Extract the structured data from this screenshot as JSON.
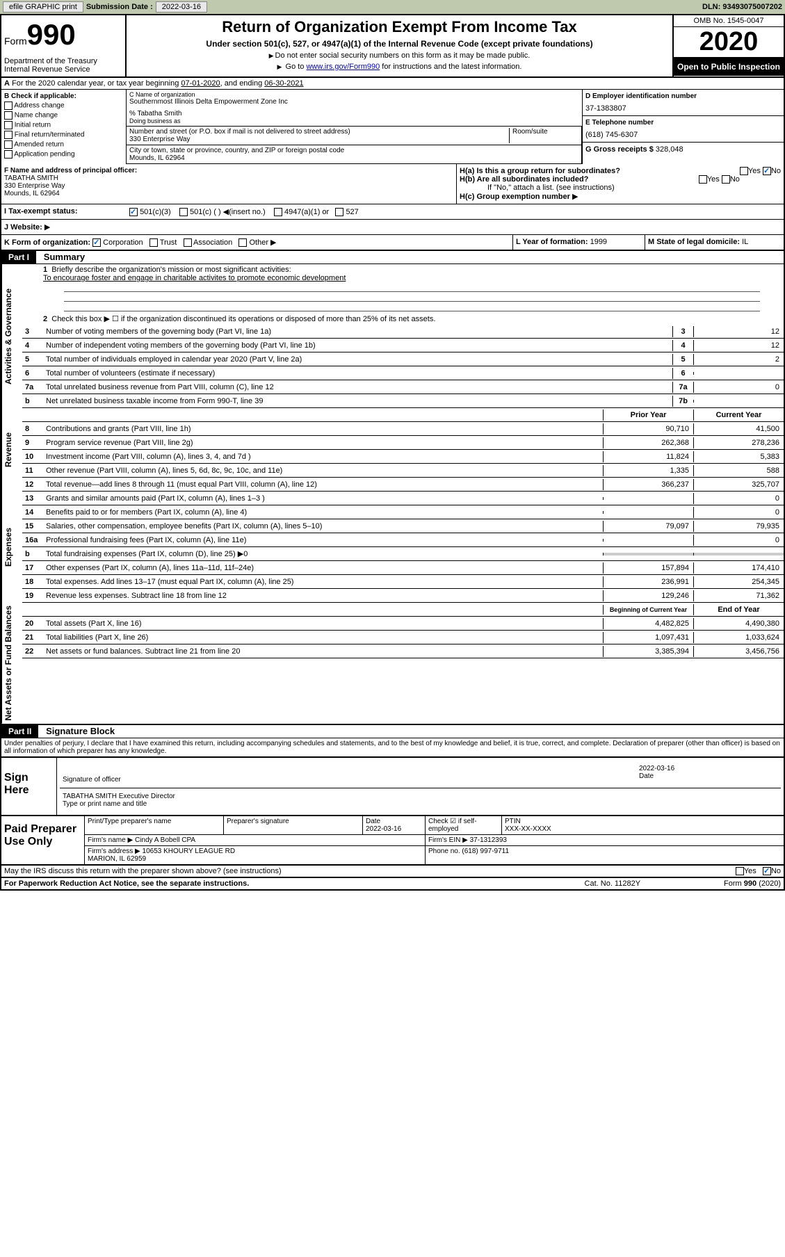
{
  "topbar": {
    "efile": "efile GRAPHIC print",
    "submission_label": "Submission Date :",
    "submission_date": "2022-03-16",
    "dln_label": "DLN:",
    "dln": "93493075007202"
  },
  "header": {
    "form_label": "Form",
    "form_num": "990",
    "dept": "Department of the Treasury\nInternal Revenue Service",
    "title": "Return of Organization Exempt From Income Tax",
    "subtitle": "Under section 501(c), 527, or 4947(a)(1) of the Internal Revenue Code (except private foundations)",
    "note1": "Do not enter social security numbers on this form as it may be made public.",
    "note2_prefix": "Go to ",
    "note2_link": "www.irs.gov/Form990",
    "note2_suffix": " for instructions and the latest information.",
    "omb": "OMB No. 1545-0047",
    "year": "2020",
    "inspection": "Open to Public Inspection"
  },
  "period": {
    "text": "For the 2020 calendar year, or tax year beginning ",
    "begin": "07-01-2020",
    "mid": ", and ending ",
    "end": "06-30-2021"
  },
  "b": {
    "label": "B Check if applicable:",
    "opts": [
      "Address change",
      "Name change",
      "Initial return",
      "Final return/terminated",
      "Amended return",
      "Application pending"
    ]
  },
  "c": {
    "name_lbl": "C Name of organization",
    "name": "Southernmost Illinois Delta Empowerment Zone Inc",
    "care_of": "% Tabatha Smith",
    "dba_lbl": "Doing business as",
    "street_lbl": "Number and street (or P.O. box if mail is not delivered to street address)",
    "street": "330 Enterprise Way",
    "room_lbl": "Room/suite",
    "city_lbl": "City or town, state or province, country, and ZIP or foreign postal code",
    "city": "Mounds, IL  62964"
  },
  "d": {
    "ein_lbl": "D Employer identification number",
    "ein": "37-1383807",
    "phone_lbl": "E Telephone number",
    "phone": "(618) 745-6307",
    "gross_lbl": "G Gross receipts $",
    "gross": "328,048"
  },
  "f": {
    "lbl": "F Name and address of principal officer:",
    "name": "TABATHA SMITH",
    "addr1": "330 Enterprise Way",
    "addr2": "Mounds, IL  62964"
  },
  "h": {
    "a_lbl": "H(a)  Is this a group return for subordinates?",
    "b_lbl": "H(b)  Are all subordinates included?",
    "b_note": "If \"No,\" attach a list. (see instructions)",
    "c_lbl": "H(c)  Group exemption number",
    "yes": "Yes",
    "no": "No"
  },
  "i": {
    "lbl": "I  Tax-exempt status:",
    "opt1": "501(c)(3)",
    "opt2": "501(c) (  )",
    "opt2_note": "(insert no.)",
    "opt3": "4947(a)(1) or",
    "opt4": "527"
  },
  "j": {
    "lbl": "J  Website:"
  },
  "k": {
    "lbl": "K Form of organization:",
    "opts": [
      "Corporation",
      "Trust",
      "Association",
      "Other"
    ],
    "l_lbl": "L Year of formation:",
    "l_val": "1999",
    "m_lbl": "M State of legal domicile:",
    "m_val": "IL"
  },
  "part1": {
    "label": "Part I",
    "title": "Summary",
    "side1": "Activities & Governance",
    "side2": "Revenue",
    "side3": "Expenses",
    "side4": "Net Assets or Fund Balances",
    "line1_lbl": "Briefly describe the organization's mission or most significant activities:",
    "line1_val": "To encourage foster and engage in charitable activites to promote economic development",
    "line2": "Check this box ▶ ☐  if the organization discontinued its operations or disposed of more than 25% of its net assets.",
    "lines": [
      {
        "n": "3",
        "d": "Number of voting members of the governing body (Part VI, line 1a)",
        "b": "3",
        "v": "12"
      },
      {
        "n": "4",
        "d": "Number of independent voting members of the governing body (Part VI, line 1b)",
        "b": "4",
        "v": "12"
      },
      {
        "n": "5",
        "d": "Total number of individuals employed in calendar year 2020 (Part V, line 2a)",
        "b": "5",
        "v": "2"
      },
      {
        "n": "6",
        "d": "Total number of volunteers (estimate if necessary)",
        "b": "6",
        "v": ""
      },
      {
        "n": "7a",
        "d": "Total unrelated business revenue from Part VIII, column (C), line 12",
        "b": "7a",
        "v": "0"
      },
      {
        "n": "b",
        "d": "Net unrelated business taxable income from Form 990-T, line 39",
        "b": "7b",
        "v": ""
      }
    ],
    "col_prior": "Prior Year",
    "col_current": "Current Year",
    "rev_lines": [
      {
        "n": "8",
        "d": "Contributions and grants (Part VIII, line 1h)",
        "p": "90,710",
        "c": "41,500"
      },
      {
        "n": "9",
        "d": "Program service revenue (Part VIII, line 2g)",
        "p": "262,368",
        "c": "278,236"
      },
      {
        "n": "10",
        "d": "Investment income (Part VIII, column (A), lines 3, 4, and 7d )",
        "p": "11,824",
        "c": "5,383"
      },
      {
        "n": "11",
        "d": "Other revenue (Part VIII, column (A), lines 5, 6d, 8c, 9c, 10c, and 11e)",
        "p": "1,335",
        "c": "588"
      },
      {
        "n": "12",
        "d": "Total revenue—add lines 8 through 11 (must equal Part VIII, column (A), line 12)",
        "p": "366,237",
        "c": "325,707"
      }
    ],
    "exp_lines": [
      {
        "n": "13",
        "d": "Grants and similar amounts paid (Part IX, column (A), lines 1–3 )",
        "p": "",
        "c": "0"
      },
      {
        "n": "14",
        "d": "Benefits paid to or for members (Part IX, column (A), line 4)",
        "p": "",
        "c": "0"
      },
      {
        "n": "15",
        "d": "Salaries, other compensation, employee benefits (Part IX, column (A), lines 5–10)",
        "p": "79,097",
        "c": "79,935"
      },
      {
        "n": "16a",
        "d": "Professional fundraising fees (Part IX, column (A), line 11e)",
        "p": "",
        "c": "0"
      },
      {
        "n": "b",
        "d": "Total fundraising expenses (Part IX, column (D), line 25) ▶0",
        "p": "shaded",
        "c": "shaded"
      },
      {
        "n": "17",
        "d": "Other expenses (Part IX, column (A), lines 11a–11d, 11f–24e)",
        "p": "157,894",
        "c": "174,410"
      },
      {
        "n": "18",
        "d": "Total expenses. Add lines 13–17 (must equal Part IX, column (A), line 25)",
        "p": "236,991",
        "c": "254,345"
      },
      {
        "n": "19",
        "d": "Revenue less expenses. Subtract line 18 from line 12",
        "p": "129,246",
        "c": "71,362"
      }
    ],
    "col_begin": "Beginning of Current Year",
    "col_end": "End of Year",
    "net_lines": [
      {
        "n": "20",
        "d": "Total assets (Part X, line 16)",
        "p": "4,482,825",
        "c": "4,490,380"
      },
      {
        "n": "21",
        "d": "Total liabilities (Part X, line 26)",
        "p": "1,097,431",
        "c": "1,033,624"
      },
      {
        "n": "22",
        "d": "Net assets or fund balances. Subtract line 21 from line 20",
        "p": "3,385,394",
        "c": "3,456,756"
      }
    ]
  },
  "part2": {
    "label": "Part II",
    "title": "Signature Block",
    "perjury": "Under penalties of perjury, I declare that I have examined this return, including accompanying schedules and statements, and to the best of my knowledge and belief, it is true, correct, and complete. Declaration of preparer (other than officer) is based on all information of which preparer has any knowledge."
  },
  "sign": {
    "label": "Sign Here",
    "sig_lbl": "Signature of officer",
    "date_lbl": "Date",
    "date": "2022-03-16",
    "name": "TABATHA SMITH  Executive Director",
    "name_lbl": "Type or print name and title"
  },
  "preparer": {
    "label": "Paid Preparer Use Only",
    "name_lbl": "Print/Type preparer's name",
    "sig_lbl": "Preparer's signature",
    "date_lbl": "Date",
    "date": "2022-03-16",
    "check_lbl": "Check ☑ if self-employed",
    "ptin_lbl": "PTIN",
    "ptin": "XXX-XX-XXXX",
    "firm_name_lbl": "Firm's name ▶",
    "firm_name": "Cindy A Bobell CPA",
    "firm_ein_lbl": "Firm's EIN ▶",
    "firm_ein": "37-1312393",
    "firm_addr_lbl": "Firm's address ▶",
    "firm_addr": "10653 KHOURY LEAGUE RD\nMARION, IL  62959",
    "phone_lbl": "Phone no.",
    "phone": "(618) 997-9711"
  },
  "footer": {
    "discuss": "May the IRS discuss this return with the preparer shown above? (see instructions)",
    "yes": "Yes",
    "no": "No",
    "paperwork": "For Paperwork Reduction Act Notice, see the separate instructions.",
    "cat": "Cat. No. 11282Y",
    "form": "Form 990 (2020)"
  }
}
